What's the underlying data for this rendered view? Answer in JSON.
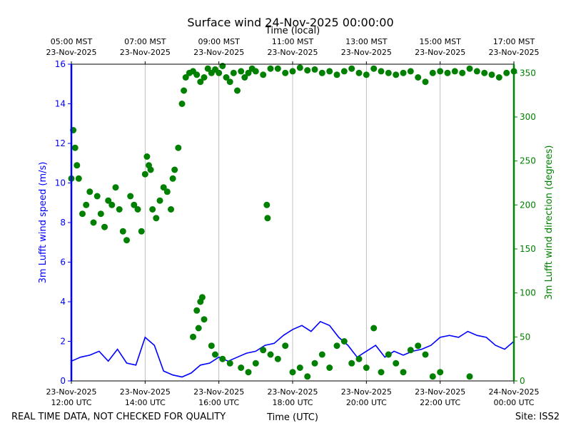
{
  "chart_data": {
    "type": "line+scatter",
    "title": "Surface wind 24-Nov-2025 00:00:00",
    "top_axis": {
      "label": "Time (local)",
      "ticks": [
        {
          "time": "05:00 MST",
          "date": "23-Nov-2025"
        },
        {
          "time": "07:00 MST",
          "date": "23-Nov-2025"
        },
        {
          "time": "09:00 MST",
          "date": "23-Nov-2025"
        },
        {
          "time": "11:00 MST",
          "date": "23-Nov-2025"
        },
        {
          "time": "13:00 MST",
          "date": "23-Nov-2025"
        },
        {
          "time": "15:00 MST",
          "date": "23-Nov-2025"
        },
        {
          "time": "17:00 MST",
          "date": "23-Nov-2025"
        }
      ]
    },
    "x_axis": {
      "label": "Time (UTC)",
      "range_hours": [
        12,
        24
      ],
      "ticks": [
        {
          "date": "23-Nov-2025",
          "time": "12:00 UTC",
          "hour": 12
        },
        {
          "date": "23-Nov-2025",
          "time": "14:00 UTC",
          "hour": 14
        },
        {
          "date": "23-Nov-2025",
          "time": "16:00 UTC",
          "hour": 16
        },
        {
          "date": "23-Nov-2025",
          "time": "18:00 UTC",
          "hour": 18
        },
        {
          "date": "23-Nov-2025",
          "time": "20:00 UTC",
          "hour": 20
        },
        {
          "date": "23-Nov-2025",
          "time": "22:00 UTC",
          "hour": 22
        },
        {
          "date": "24-Nov-2025",
          "time": "00:00 UTC",
          "hour": 24
        }
      ]
    },
    "y_left": {
      "label": "3m Lufft wind speed (m/s)",
      "range": [
        0,
        16
      ],
      "ticks": [
        "0",
        "2",
        "4",
        "6",
        "8",
        "10",
        "12",
        "14",
        "16"
      ]
    },
    "y_right": {
      "label": "3m Lufft wind direction (degrees)",
      "range": [
        0,
        360
      ],
      "ticks": [
        "0",
        "50",
        "100",
        "150",
        "200",
        "250",
        "300",
        "350"
      ]
    },
    "grid": "vertical",
    "series": [
      {
        "name": "wind speed",
        "axis": "left",
        "kind": "line",
        "color": "#0000ff",
        "x": [
          12.0,
          12.25,
          12.5,
          12.75,
          13.0,
          13.25,
          13.5,
          13.75,
          14.0,
          14.25,
          14.5,
          14.75,
          15.0,
          15.25,
          15.5,
          15.75,
          16.0,
          16.25,
          16.5,
          16.75,
          17.0,
          17.25,
          17.5,
          17.75,
          18.0,
          18.25,
          18.5,
          18.75,
          19.0,
          19.25,
          19.5,
          19.75,
          20.0,
          20.25,
          20.5,
          20.75,
          21.0,
          21.25,
          21.5,
          21.75,
          22.0,
          22.25,
          22.5,
          22.75,
          23.0,
          23.25,
          23.5,
          23.75,
          24.0
        ],
        "y": [
          1.0,
          1.2,
          1.3,
          1.5,
          1.0,
          1.6,
          0.9,
          0.8,
          2.2,
          1.8,
          0.5,
          0.3,
          0.2,
          0.4,
          0.8,
          0.9,
          1.2,
          1.0,
          1.2,
          1.4,
          1.5,
          1.8,
          1.9,
          2.3,
          2.6,
          2.8,
          2.5,
          3.0,
          2.8,
          2.2,
          1.8,
          1.2,
          1.5,
          1.8,
          1.2,
          1.5,
          1.3,
          1.5,
          1.6,
          1.8,
          2.2,
          2.3,
          2.2,
          2.5,
          2.3,
          2.2,
          1.8,
          1.6,
          2.0
        ]
      },
      {
        "name": "wind direction",
        "axis": "right",
        "kind": "scatter",
        "color": "#008000",
        "x": [
          12.0,
          12.05,
          12.1,
          12.15,
          12.2,
          12.3,
          12.4,
          12.5,
          12.6,
          12.7,
          12.8,
          12.9,
          13.0,
          13.1,
          13.2,
          13.3,
          13.4,
          13.5,
          13.6,
          13.7,
          13.8,
          13.9,
          14.0,
          14.05,
          14.1,
          14.15,
          14.2,
          14.3,
          14.4,
          14.5,
          14.6,
          14.7,
          14.75,
          14.8,
          14.9,
          15.0,
          15.05,
          15.1,
          15.2,
          15.3,
          15.4,
          15.5,
          15.6,
          15.7,
          15.8,
          15.9,
          16.0,
          16.1,
          16.2,
          16.3,
          16.4,
          16.5,
          16.6,
          16.7,
          16.8,
          16.9,
          17.0,
          17.2,
          17.4,
          17.6,
          17.8,
          18.0,
          18.2,
          18.4,
          18.6,
          18.8,
          19.0,
          19.2,
          19.4,
          19.6,
          19.8,
          20.0,
          20.2,
          20.4,
          20.6,
          20.8,
          21.0,
          21.2,
          21.4,
          21.6,
          21.8,
          22.0,
          22.2,
          22.4,
          22.6,
          22.8,
          23.0,
          23.2,
          23.4,
          23.6,
          23.8,
          24.0,
          15.4,
          15.5,
          15.6,
          15.45,
          15.55,
          15.3,
          15.8,
          15.9,
          16.1,
          16.3,
          16.6,
          16.8,
          17.0,
          17.2,
          17.4,
          17.6,
          17.8,
          18.0,
          18.2,
          18.4,
          18.6,
          18.8,
          19.0,
          19.2,
          19.4,
          19.6,
          19.8,
          20.0,
          20.2,
          20.4,
          20.6,
          20.8,
          21.0,
          21.2,
          21.4,
          21.6,
          21.8,
          22.0,
          22.8,
          17.3,
          17.32
        ],
        "y": [
          230,
          285,
          265,
          245,
          230,
          190,
          200,
          215,
          180,
          210,
          190,
          175,
          205,
          200,
          220,
          195,
          170,
          160,
          210,
          200,
          195,
          170,
          235,
          255,
          245,
          240,
          195,
          185,
          205,
          220,
          215,
          195,
          230,
          240,
          265,
          315,
          330,
          345,
          350,
          352,
          348,
          340,
          345,
          355,
          350,
          354,
          350,
          358,
          345,
          340,
          350,
          330,
          352,
          345,
          350,
          355,
          352,
          348,
          355,
          355,
          350,
          352,
          356,
          353,
          354,
          350,
          352,
          348,
          352,
          355,
          350,
          348,
          355,
          352,
          350,
          348,
          350,
          352,
          345,
          340,
          350,
          352,
          350,
          352,
          350,
          355,
          352,
          350,
          348,
          345,
          350,
          352,
          80,
          90,
          70,
          60,
          95,
          50,
          40,
          30,
          25,
          20,
          15,
          10,
          20,
          35,
          30,
          25,
          40,
          10,
          15,
          5,
          20,
          30,
          15,
          40,
          45,
          20,
          25,
          15,
          60,
          10,
          30,
          20,
          10,
          35,
          40,
          30,
          5,
          10,
          5,
          200,
          185
        ]
      }
    ]
  },
  "footer": {
    "left": "REAL TIME DATA, NOT CHECKED FOR QUALITY",
    "right": "Site: ISS2"
  }
}
